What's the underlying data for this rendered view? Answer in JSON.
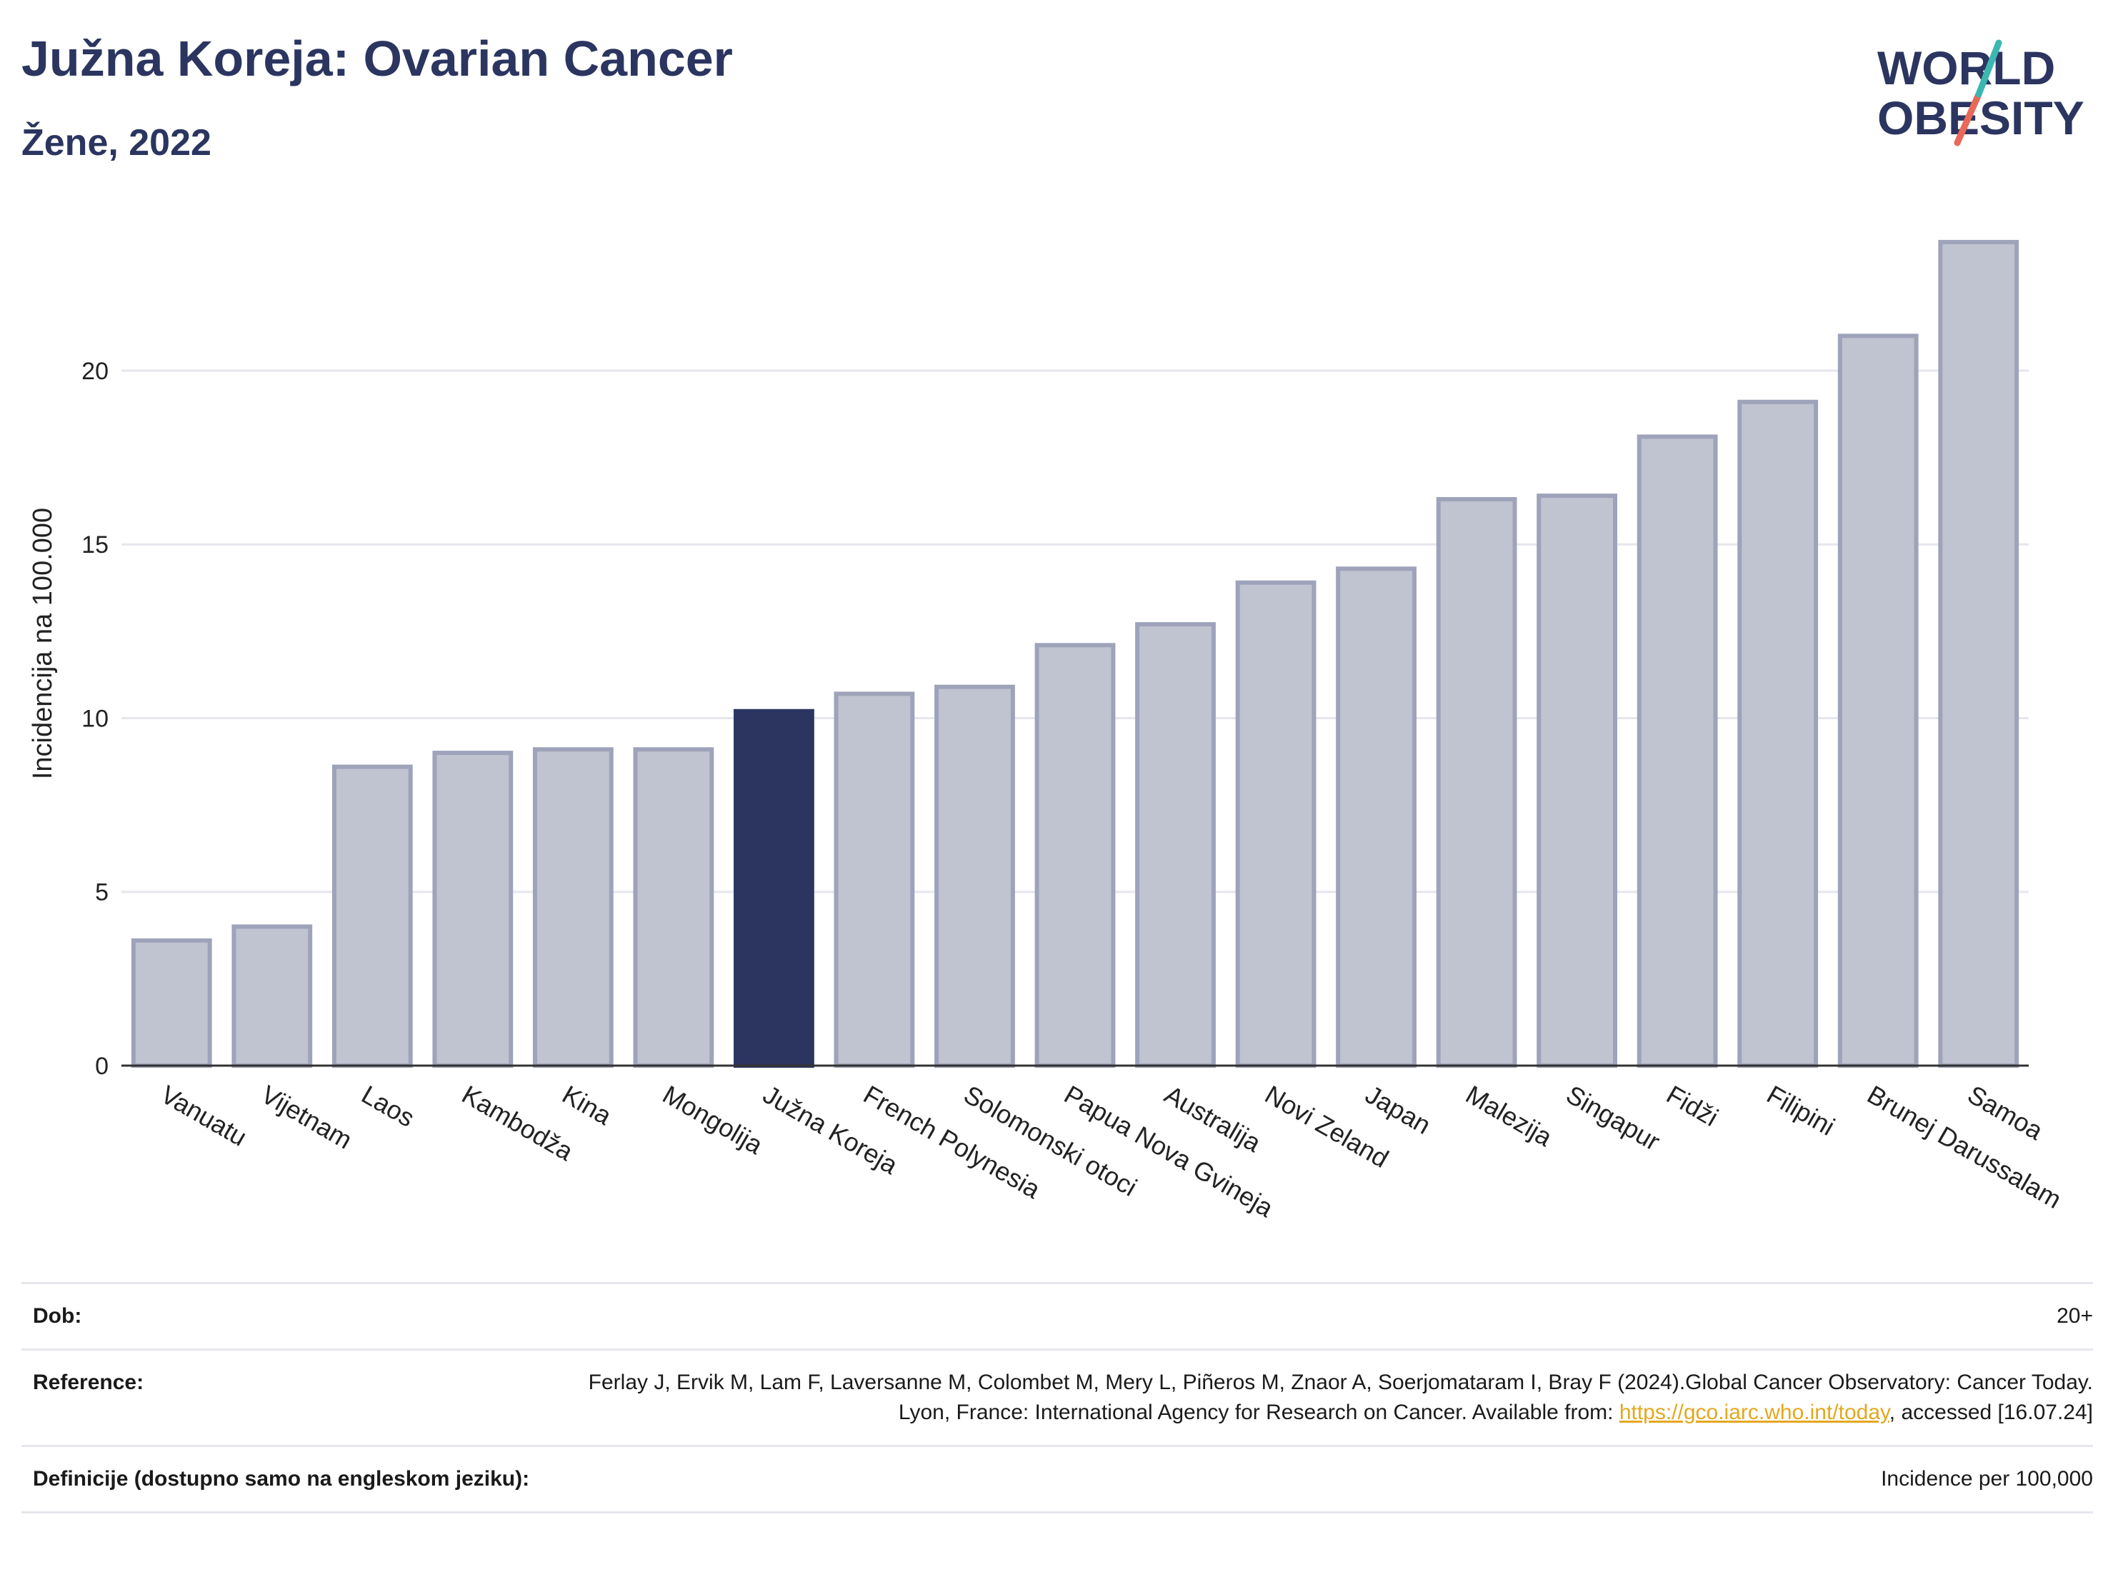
{
  "header": {
    "title": "Južna Koreja: Ovarian Cancer",
    "subtitle": "Žene, 2022"
  },
  "logo": {
    "line1": "WORLD",
    "line2": "OBESITY"
  },
  "chart_data": {
    "type": "bar",
    "ylabel": "Incidencija na 100.000",
    "ylim": [
      0,
      24.5
    ],
    "yticks": [
      0,
      5,
      10,
      15,
      20
    ],
    "grid": true,
    "highlight": "Južna Koreja",
    "categories": [
      "Vanuatu",
      "Vijetnam",
      "Laos",
      "Kambodža",
      "Kina",
      "Mongolija",
      "Južna Koreja",
      "French Polynesia",
      "Solomonski otoci",
      "Papua Nova Gvineja",
      "Australija",
      "Novi Zeland",
      "Japan",
      "Malezija",
      "Singapur",
      "Fidži",
      "Filipini",
      "Brunej Darussalam",
      "Samoa"
    ],
    "values": [
      3.6,
      4.0,
      8.6,
      9.0,
      9.1,
      9.1,
      10.2,
      10.7,
      10.9,
      12.1,
      12.7,
      13.9,
      14.3,
      16.3,
      16.4,
      18.1,
      19.1,
      21.0,
      23.7
    ],
    "colors": {
      "bar": "#c0c3d0",
      "bar_edge": "#9ea3ba",
      "highlight": "#2b3560"
    }
  },
  "footer": {
    "age_label": "Dob:",
    "age_value": "20+",
    "ref_label": "Reference:",
    "ref_text_1": "Ferlay J, Ervik M, Lam F, Laversanne M, Colombet M, Mery L, Piñeros M, Znaor A, Soerjomataram I, Bray F (2024).Global Cancer Observatory: Cancer Today. Lyon, France: International Agency for Research on Cancer. Available from: ",
    "ref_link": "https://gco.iarc.who.int/today",
    "ref_text_2": ", accessed [16.07.24]",
    "def_label": "Definicije (dostupno samo na engleskom jeziku):",
    "def_value": "Incidence per 100,000"
  }
}
